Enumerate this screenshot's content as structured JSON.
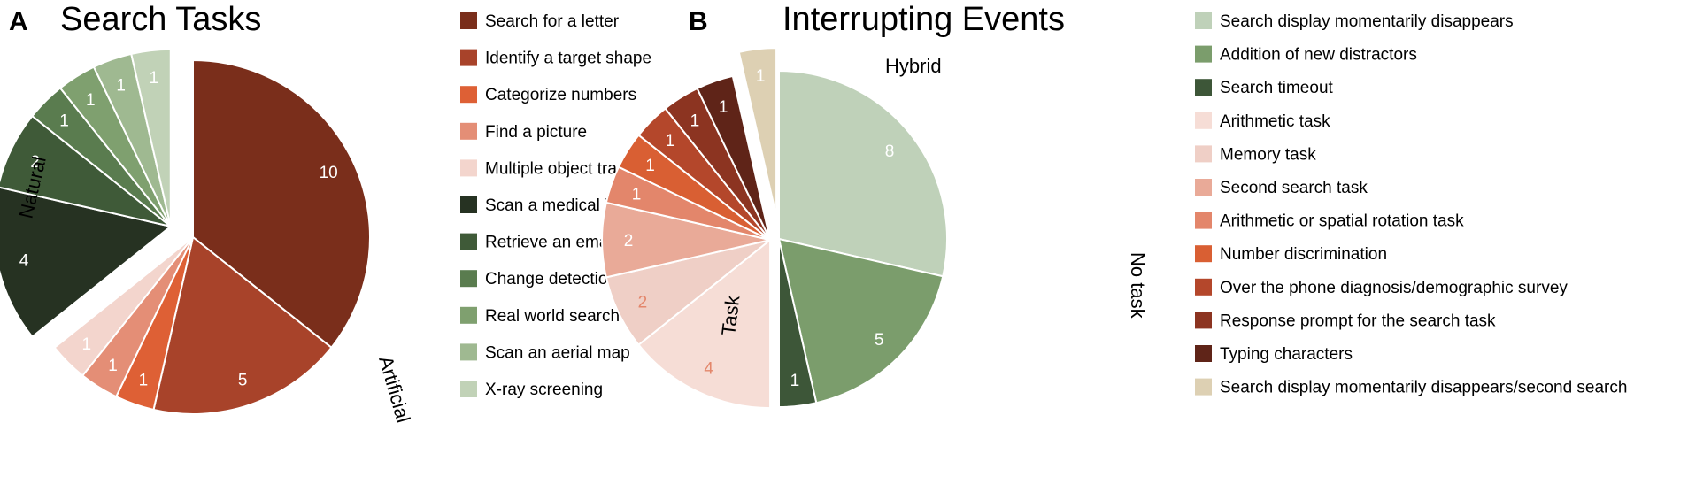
{
  "chart_data": [
    {
      "panel": "A",
      "title": "Search Tasks",
      "type": "pie",
      "slices": [
        {
          "label": "Search for a letter",
          "value": 10,
          "color": "#7a2e1b",
          "group": "Artificial"
        },
        {
          "label": "Identify a target shape",
          "value": 5,
          "color": "#a8432a",
          "group": "Artificial"
        },
        {
          "label": "Categorize numbers",
          "value": 1,
          "color": "#de6035",
          "group": "Artificial"
        },
        {
          "label": "Find a picture",
          "value": 1,
          "color": "#e48e76",
          "group": "Artificial"
        },
        {
          "label": "Multiple object tracking",
          "value": 1,
          "color": "#f3d5cd",
          "group": "Artificial"
        },
        {
          "label": "Scan a medical image",
          "value": 4,
          "color": "#263222",
          "group": "Natural"
        },
        {
          "label": "Retrieve an email",
          "value": 2,
          "color": "#3f5a38",
          "group": "Natural"
        },
        {
          "label": "Change detection task",
          "value": 1,
          "color": "#5a7c4f",
          "group": "Natural"
        },
        {
          "label": "Real world search",
          "value": 1,
          "color": "#7fa06f",
          "group": "Natural"
        },
        {
          "label": "Scan an aerial map",
          "value": 1,
          "color": "#9fb991",
          "group": "Natural"
        },
        {
          "label": "X-ray screening",
          "value": 1,
          "color": "#c1d2b7",
          "group": "Natural"
        }
      ],
      "groups": [
        "Artificial",
        "Natural"
      ]
    },
    {
      "panel": "B",
      "title": "Interrupting Events",
      "type": "pie",
      "slices": [
        {
          "label": "Search display momentarily disappears",
          "value": 8,
          "color": "#bfd1b9",
          "group": "No task"
        },
        {
          "label": "Addition of new distractors",
          "value": 5,
          "color": "#7b9d6c",
          "group": "No task"
        },
        {
          "label": "Search timeout",
          "value": 1,
          "color": "#3d5638",
          "group": "No task"
        },
        {
          "label": "Arithmetic task",
          "value": 4,
          "color": "#f6ddd6",
          "group": "Task"
        },
        {
          "label": "Memory task",
          "value": 2,
          "color": "#efcfc6",
          "group": "Task"
        },
        {
          "label": "Second search task",
          "value": 2,
          "color": "#e9aa98",
          "group": "Task"
        },
        {
          "label": "Arithmetic or spatial rotation task",
          "value": 1,
          "color": "#e3866b",
          "group": "Task"
        },
        {
          "label": "Number discrimination",
          "value": 1,
          "color": "#d95f33",
          "group": "Task"
        },
        {
          "label": "Over the phone diagnosis/demographic survey",
          "value": 1,
          "color": "#b4472b",
          "group": "Task"
        },
        {
          "label": "Response prompt for the search task",
          "value": 1,
          "color": "#8c3421",
          "group": "Task"
        },
        {
          "label": "Typing characters",
          "value": 1,
          "color": "#5f2418",
          "group": "Task"
        },
        {
          "label": "Search display momentarily disappears/second search",
          "value": 1,
          "color": "#ddd0b3",
          "group": "Hybrid"
        }
      ],
      "groups": [
        "No task",
        "Task",
        "Hybrid"
      ]
    }
  ]
}
